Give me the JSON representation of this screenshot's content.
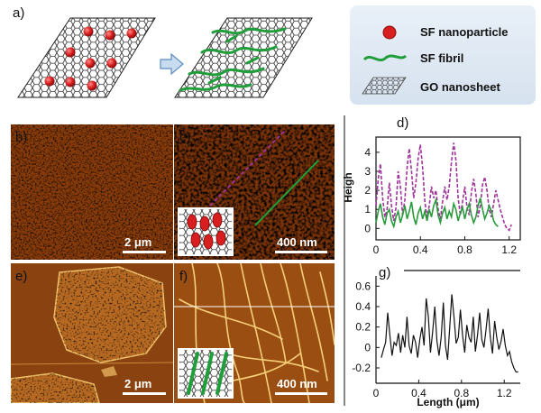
{
  "panels": {
    "a": "a)",
    "b": "b)",
    "c": "c)",
    "d": "d)",
    "e": "e)",
    "f": "f)",
    "g": "g)"
  },
  "legend": {
    "nanoparticle": "SF nanoparticle",
    "fibril": "SF fibril",
    "nanosheet": "GO nanosheet"
  },
  "scale": {
    "b": "2 μm",
    "c": "400 nm",
    "e": "2 μm",
    "f": "400 nm"
  },
  "colors": {
    "sf_nanoparticle": "#d81e1e",
    "sf_fibril": "#1f9e3a",
    "go_sheet": "#333333",
    "afm_dark": "#6b2a05",
    "afm_mid": "#b5651d",
    "afm_light": "#f3cf7a",
    "trace_dashed": "#a0329c",
    "trace_solid": "#2a9b3c",
    "legend_bg": "#dde7f2"
  },
  "chart_data": [
    {
      "type": "line",
      "panel": "d",
      "ylabel": "Heigh",
      "xlim": [
        0,
        1.3
      ],
      "ylim": [
        -0.6,
        4.8
      ],
      "xticks": [
        "0",
        "0.4",
        "0.8",
        "1.2"
      ],
      "yticks": [
        "0",
        "1",
        "2",
        "3",
        "4"
      ],
      "series": [
        {
          "style": "dashed",
          "x": [
            0,
            0.02,
            0.04,
            0.06,
            0.08,
            0.1,
            0.12,
            0.14,
            0.16,
            0.18,
            0.2,
            0.22,
            0.24,
            0.26,
            0.28,
            0.3,
            0.32,
            0.34,
            0.36,
            0.38,
            0.4,
            0.42,
            0.44,
            0.46,
            0.48,
            0.5,
            0.52,
            0.54,
            0.56,
            0.58,
            0.6,
            0.62,
            0.64,
            0.66,
            0.68,
            0.7,
            0.72,
            0.74,
            0.76,
            0.78,
            0.8,
            0.82,
            0.84,
            0.86,
            0.88,
            0.9,
            0.92,
            0.94,
            0.96,
            0.98,
            1.0,
            1.02,
            1.04,
            1.06,
            1.08,
            1.1,
            1.12,
            1.14,
            1.16,
            1.18,
            1.2,
            1.22
          ],
          "y": [
            1.2,
            2.6,
            3.4,
            1.6,
            0.6,
            1.0,
            2.4,
            1.2,
            0.4,
            1.1,
            3.0,
            2.2,
            0.7,
            1.5,
            3.2,
            4.2,
            3.0,
            1.6,
            2.4,
            3.7,
            4.4,
            3.2,
            1.4,
            0.6,
            1.2,
            2.2,
            1.6,
            2.0,
            1.0,
            0.5,
            1.4,
            2.2,
            1.5,
            2.2,
            3.5,
            4.5,
            3.6,
            1.6,
            0.7,
            1.4,
            2.2,
            1.1,
            0.7,
            1.9,
            2.6,
            1.8,
            0.6,
            1.2,
            2.3,
            2.7,
            2.0,
            1.0,
            0.6,
            1.3,
            2.0,
            1.5,
            1.0,
            0.6,
            0.2,
            0.0,
            -0.1,
            0.2
          ]
        },
        {
          "style": "solid",
          "x": [
            0,
            0.02,
            0.04,
            0.06,
            0.08,
            0.1,
            0.12,
            0.14,
            0.16,
            0.18,
            0.2,
            0.22,
            0.24,
            0.26,
            0.28,
            0.3,
            0.32,
            0.34,
            0.36,
            0.38,
            0.4,
            0.42,
            0.44,
            0.46,
            0.48,
            0.5,
            0.52,
            0.54,
            0.56,
            0.58,
            0.6,
            0.62,
            0.64,
            0.66,
            0.68,
            0.7,
            0.72,
            0.74,
            0.76,
            0.78,
            0.8,
            0.82,
            0.84,
            0.86,
            0.88,
            0.9,
            0.92,
            0.94,
            0.96,
            0.98,
            1.0,
            1.02,
            1.04,
            1.06,
            1.08,
            1.1
          ],
          "y": [
            0.3,
            0.9,
            1.3,
            0.6,
            0.2,
            0.8,
            1.0,
            0.4,
            0.1,
            0.6,
            0.9,
            0.3,
            0.7,
            1.2,
            0.5,
            0.9,
            1.4,
            0.6,
            0.2,
            0.8,
            1.1,
            0.5,
            0.9,
            0.4,
            1.0,
            0.6,
            1.2,
            1.5,
            0.7,
            0.3,
            0.8,
            1.1,
            0.5,
            0.9,
            0.6,
            1.3,
            1.0,
            0.4,
            0.8,
            1.1,
            0.5,
            1.0,
            1.3,
            0.7,
            0.3,
            0.6,
            1.2,
            1.6,
            1.0,
            0.5,
            0.8,
            1.2,
            0.9,
            0.4,
            0.2,
            0.1
          ]
        }
      ]
    },
    {
      "type": "line",
      "panel": "g",
      "xlabel": "Length (μm)",
      "xlim": [
        0,
        1.35
      ],
      "ylim": [
        -0.35,
        0.7
      ],
      "xticks": [
        "0",
        "0.4",
        "0.8",
        "1.2"
      ],
      "yticks": [
        "0.6",
        "0.4",
        "0.2",
        "0",
        "-0.2"
      ],
      "series": [
        {
          "style": "solid",
          "x": [
            0.05,
            0.07,
            0.09,
            0.11,
            0.13,
            0.15,
            0.17,
            0.19,
            0.21,
            0.23,
            0.25,
            0.27,
            0.29,
            0.31,
            0.33,
            0.35,
            0.37,
            0.39,
            0.41,
            0.43,
            0.45,
            0.47,
            0.49,
            0.51,
            0.53,
            0.55,
            0.57,
            0.59,
            0.61,
            0.63,
            0.65,
            0.67,
            0.69,
            0.71,
            0.73,
            0.75,
            0.77,
            0.79,
            0.81,
            0.83,
            0.85,
            0.87,
            0.89,
            0.91,
            0.93,
            0.95,
            0.97,
            0.99,
            1.01,
            1.03,
            1.05,
            1.07,
            1.09,
            1.11,
            1.13,
            1.15,
            1.17,
            1.19,
            1.21,
            1.23,
            1.25,
            1.27,
            1.29,
            1.31,
            1.33
          ],
          "y": [
            -0.1,
            -0.02,
            0.05,
            0.34,
            0.12,
            -0.08,
            0.05,
            0.02,
            0.14,
            -0.05,
            0.12,
            0.0,
            0.3,
            0.02,
            -0.06,
            0.12,
            0.05,
            -0.1,
            0.08,
            0.2,
            0.02,
            0.48,
            0.3,
            -0.05,
            0.15,
            0.4,
            0.06,
            -0.08,
            0.1,
            0.44,
            0.02,
            -0.12,
            0.2,
            0.52,
            0.3,
            0.04,
            0.1,
            0.37,
            0.12,
            -0.05,
            0.22,
            0.1,
            0.05,
            0.3,
            -0.04,
            0.12,
            0.34,
            0.08,
            0.0,
            0.18,
            0.38,
            0.1,
            -0.06,
            0.26,
            0.1,
            -0.02,
            0.06,
            0.18,
            0.02,
            -0.08,
            -0.04,
            -0.14,
            -0.2,
            -0.24,
            -0.24
          ]
        }
      ]
    }
  ]
}
